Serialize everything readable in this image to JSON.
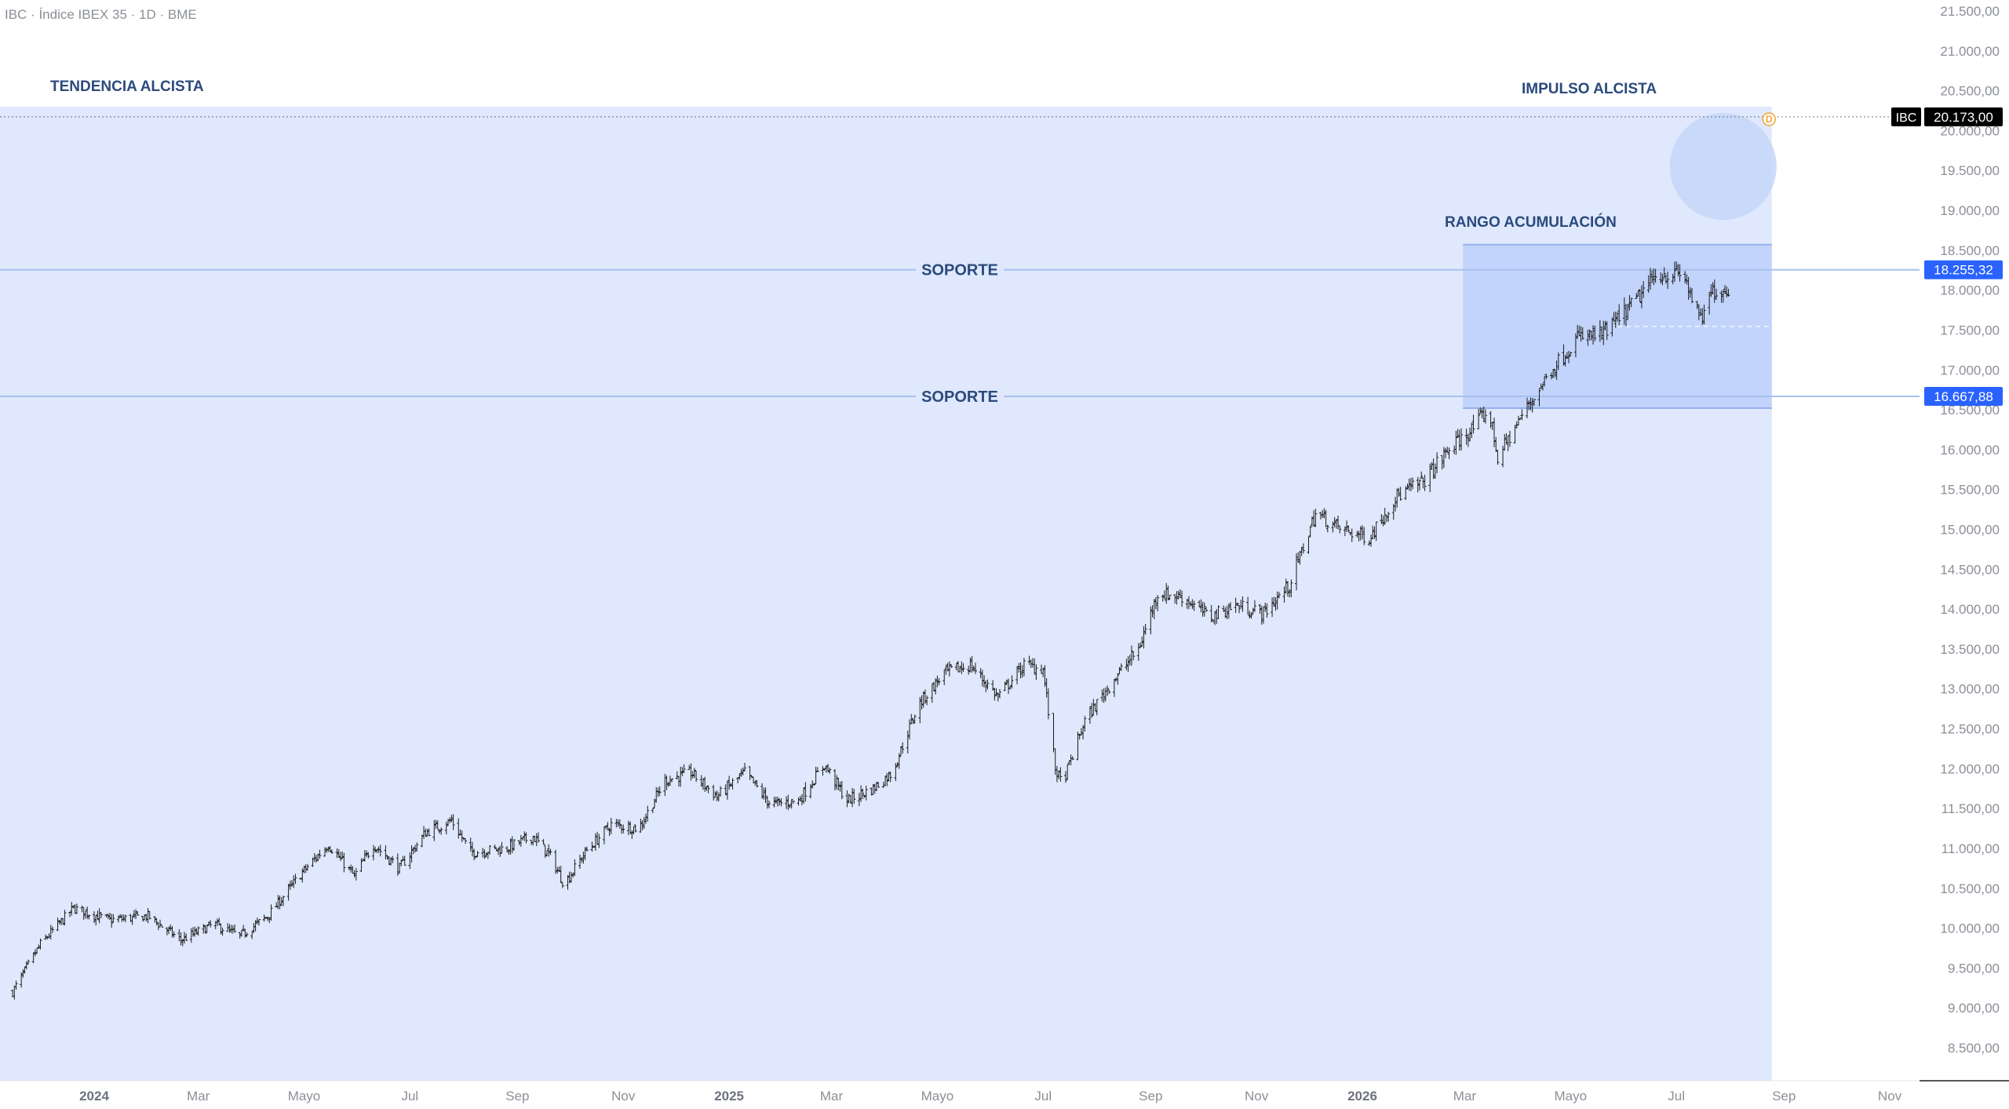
{
  "header": {
    "symbol_line": "IBC · Índice IBEX 35 · 1D · BME"
  },
  "chart_data": {
    "type": "candlestick",
    "symbol": "IBC",
    "interval": "1D",
    "ylim": [
      8250,
      21700
    ],
    "y_ticks": [
      "8.500,00",
      "9.000,00",
      "9.500,00",
      "10.000,00",
      "10.500,00",
      "11.000,00",
      "11.500,00",
      "12.000,00",
      "12.500,00",
      "13.000,00",
      "13.500,00",
      "14.000,00",
      "14.500,00",
      "15.000,00",
      "15.500,00",
      "16.000,00",
      "16.500,00",
      "17.000,00",
      "17.500,00",
      "18.000,00",
      "18.500,00",
      "19.000,00",
      "19.500,00",
      "20.000,00",
      "20.500,00",
      "21.000,00",
      "21.500,00"
    ],
    "x_ticks": [
      {
        "label": "2024",
        "date": "2024-01-01",
        "bold": true
      },
      {
        "label": "Mar",
        "date": "2024-03-01"
      },
      {
        "label": "Mayo",
        "date": "2024-05-01"
      },
      {
        "label": "Jul",
        "date": "2024-07-01"
      },
      {
        "label": "Sep",
        "date": "2024-09-01"
      },
      {
        "label": "Nov",
        "date": "2024-11-01"
      },
      {
        "label": "2025",
        "date": "2025-01-01",
        "bold": true
      },
      {
        "label": "Mar",
        "date": "2025-03-01"
      },
      {
        "label": "Mayo",
        "date": "2025-05-01"
      },
      {
        "label": "Jul",
        "date": "2025-07-01"
      },
      {
        "label": "Sep",
        "date": "2025-09-01"
      },
      {
        "label": "Nov",
        "date": "2025-11-01"
      },
      {
        "label": "2026",
        "date": "2026-01-01",
        "bold": true
      },
      {
        "label": "Mar",
        "date": "2026-03-01"
      },
      {
        "label": "Mayo",
        "date": "2026-05-01"
      },
      {
        "label": "Jul",
        "date": "2026-07-01"
      },
      {
        "label": "Sep",
        "date": "2026-09-01"
      },
      {
        "label": "Nov",
        "date": "2026-11-01"
      }
    ],
    "price_path": [
      [
        "2023-11-15",
        9200
      ],
      [
        "2023-12-01",
        9800
      ],
      [
        "2023-12-20",
        10250
      ],
      [
        "2024-01-10",
        10100
      ],
      [
        "2024-02-01",
        10150
      ],
      [
        "2024-02-20",
        9850
      ],
      [
        "2024-03-10",
        10050
      ],
      [
        "2024-03-25",
        9900
      ],
      [
        "2024-04-10",
        10150
      ],
      [
        "2024-04-30",
        10700
      ],
      [
        "2024-05-15",
        11050
      ],
      [
        "2024-05-30",
        10650
      ],
      [
        "2024-06-10",
        11050
      ],
      [
        "2024-06-25",
        10750
      ],
      [
        "2024-07-10",
        11200
      ],
      [
        "2024-07-25",
        11350
      ],
      [
        "2024-08-05",
        10950
      ],
      [
        "2024-08-25",
        11000
      ],
      [
        "2024-09-10",
        11150
      ],
      [
        "2024-09-20",
        10900
      ],
      [
        "2024-09-28",
        10550
      ],
      [
        "2024-10-10",
        10950
      ],
      [
        "2024-10-25",
        11300
      ],
      [
        "2024-11-10",
        11250
      ],
      [
        "2024-11-25",
        11850
      ],
      [
        "2024-12-10",
        11950
      ],
      [
        "2024-12-25",
        11650
      ],
      [
        "2025-01-10",
        11950
      ],
      [
        "2025-01-25",
        11550
      ],
      [
        "2025-02-10",
        11600
      ],
      [
        "2025-02-25",
        12050
      ],
      [
        "2025-03-10",
        11600
      ],
      [
        "2025-03-25",
        11750
      ],
      [
        "2025-04-05",
        11950
      ],
      [
        "2025-04-20",
        12800
      ],
      [
        "2025-05-05",
        13200
      ],
      [
        "2025-05-20",
        13300
      ],
      [
        "2025-06-05",
        12900
      ],
      [
        "2025-06-20",
        13300
      ],
      [
        "2025-07-01",
        13250
      ],
      [
        "2025-07-08",
        12000
      ],
      [
        "2025-07-12",
        11800
      ],
      [
        "2025-07-25",
        12600
      ],
      [
        "2025-08-10",
        13100
      ],
      [
        "2025-08-25",
        13500
      ],
      [
        "2025-09-05",
        14200
      ],
      [
        "2025-09-20",
        14150
      ],
      [
        "2025-10-05",
        13900
      ],
      [
        "2025-10-20",
        14050
      ],
      [
        "2025-11-05",
        13950
      ],
      [
        "2025-11-20",
        14300
      ],
      [
        "2025-12-05",
        15200
      ],
      [
        "2025-12-20",
        15000
      ],
      [
        "2026-01-05",
        14900
      ],
      [
        "2026-01-20",
        15400
      ],
      [
        "2026-02-05",
        15600
      ],
      [
        "2026-02-20",
        16000
      ],
      [
        "2026-03-05",
        16250
      ],
      [
        "2026-03-15",
        16500
      ],
      [
        "2026-03-20",
        15900
      ],
      [
        "2026-04-05",
        16500
      ],
      [
        "2026-04-20",
        17000
      ],
      [
        "2026-05-05",
        17400
      ],
      [
        "2026-05-20",
        17450
      ],
      [
        "2026-06-05",
        17800
      ],
      [
        "2026-06-20",
        18200
      ],
      [
        "2026-07-05",
        18200
      ],
      [
        "2026-07-15",
        17600
      ],
      [
        "2026-07-22",
        18000
      ],
      [
        "2026-08-01",
        18000
      ]
    ],
    "levels": [
      {
        "name": "SOPORTE",
        "value": 18255.32,
        "label": "18.255,32"
      },
      {
        "name": "SOPORTE",
        "value": 16667.88,
        "label": "16.667,88"
      }
    ],
    "last_price": {
      "symbol": "IBC",
      "value": 20173.0,
      "label": "20.173,00"
    },
    "zones": {
      "trend": {
        "label": "TENDENCIA ALCISTA",
        "from": "2023-11-15",
        "to": "2026-08-25",
        "y_top": 20300
      },
      "range": {
        "label": "RANGO ACUMULACIÓN",
        "from": "2026-02-28",
        "to": "2026-08-25",
        "y_top": 18570,
        "y_bottom": 16520
      },
      "impulse": {
        "label": "IMPULSO ALCISTA"
      }
    },
    "colors": {
      "trend_zone": "#dfe8fc",
      "range_zone": "#c2d4fb",
      "impulse_circle": "#c6d6f8",
      "level_line": "#a9c0ee",
      "level_badge": "#2962ff",
      "annotation_text": "#2b4a7c",
      "candle": "#1a1a1a",
      "axis_text": "#8b8f97",
      "last_badge": "#000000",
      "event_marker": "#f2a531"
    }
  }
}
